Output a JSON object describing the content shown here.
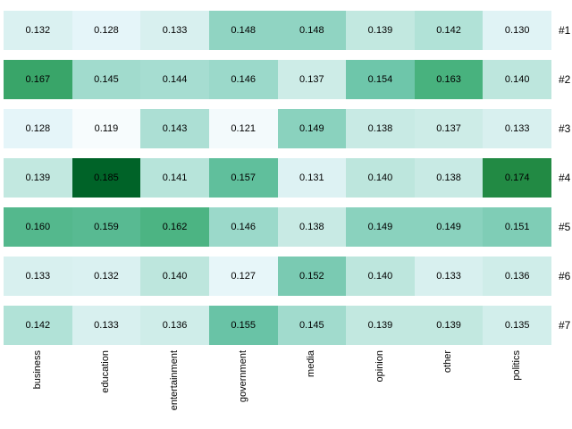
{
  "figure": {
    "background": "#ffffff",
    "title": ""
  },
  "chart_data": {
    "type": "heatmap",
    "title": "",
    "xlabel": "",
    "ylabel": "",
    "columns": [
      "business",
      "education",
      "entertainment",
      "government",
      "media",
      "opinion",
      "other",
      "politics"
    ],
    "rows": [
      "#1",
      "#2",
      "#3",
      "#4",
      "#5",
      "#6",
      "#7"
    ],
    "values": [
      [
        0.132,
        0.128,
        0.133,
        0.148,
        0.148,
        0.139,
        0.142,
        0.13
      ],
      [
        0.167,
        0.145,
        0.144,
        0.146,
        0.137,
        0.154,
        0.163,
        0.14
      ],
      [
        0.128,
        0.119,
        0.143,
        0.121,
        0.149,
        0.138,
        0.137,
        0.133
      ],
      [
        0.139,
        0.185,
        0.141,
        0.157,
        0.131,
        0.14,
        0.138,
        0.174
      ],
      [
        0.16,
        0.159,
        0.162,
        0.146,
        0.138,
        0.149,
        0.149,
        0.151
      ],
      [
        0.133,
        0.132,
        0.14,
        0.127,
        0.152,
        0.14,
        0.133,
        0.136
      ],
      [
        0.142,
        0.133,
        0.136,
        0.155,
        0.145,
        0.139,
        0.139,
        0.135
      ]
    ],
    "cell_label_decimals": 3,
    "value_text_color": "#000000",
    "row_gap_color": "#ffffff",
    "legend": "none",
    "row_label_position": "right",
    "column_label_rotation_deg": 90,
    "colormap": {
      "name": "BuGn",
      "vmin": 0.119,
      "vmax": 0.192,
      "stops": [
        {
          "t": 0.0,
          "color": "#f7fcfd"
        },
        {
          "t": 0.125,
          "color": "#e5f5f9"
        },
        {
          "t": 0.25,
          "color": "#ccece6"
        },
        {
          "t": 0.375,
          "color": "#99d8c9"
        },
        {
          "t": 0.5,
          "color": "#66c2a4"
        },
        {
          "t": 0.625,
          "color": "#41ae76"
        },
        {
          "t": 0.75,
          "color": "#238b45"
        },
        {
          "t": 0.875,
          "color": "#006d2c"
        },
        {
          "t": 1.0,
          "color": "#00441b"
        }
      ]
    }
  }
}
